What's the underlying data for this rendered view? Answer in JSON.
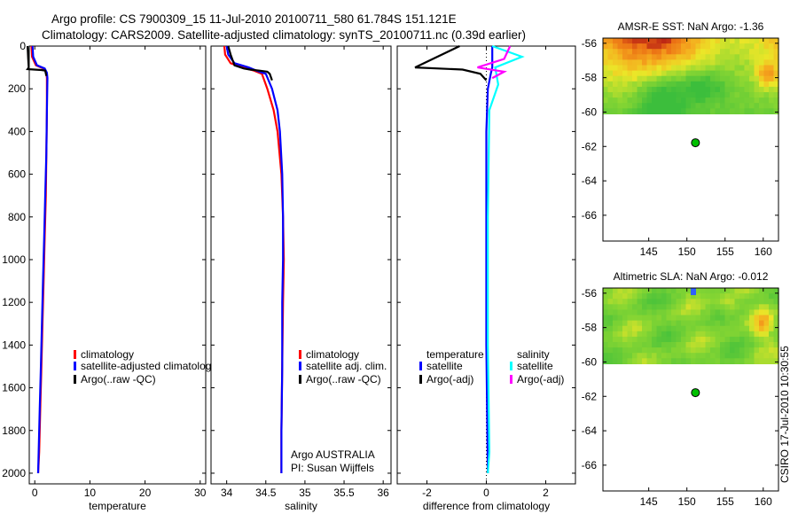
{
  "title": {
    "line1": "Argo profile: CS 7900309_15 11-Jul-2010 20100711_580 61.784S 151.121E",
    "line2": "Climatology: CARS2009. Satellite-adjusted climatology: synTS_20100711.nc (0.39d earlier)"
  },
  "side_stamp": "CSIRO 17-Jul-2010 10:30:55",
  "colors": {
    "climatology": "#ff0000",
    "satellite": "#0000ff",
    "argo": "#000000",
    "sal_satellite": "#00ffff",
    "sal_argo": "#ff00ff",
    "marker": "#00c000"
  },
  "chart_data": [
    {
      "type": "line",
      "name": "temperature_profile",
      "xlabel": "temperature",
      "ylabel": "",
      "xlim": [
        -1,
        31
      ],
      "ylim": [
        2050,
        0
      ],
      "xticks": [
        0,
        10,
        20,
        30
      ],
      "xtick_labels": [
        "0",
        "10",
        "20",
        "30"
      ],
      "yticks": [
        0,
        200,
        400,
        600,
        800,
        1000,
        1200,
        1400,
        1600,
        1800,
        2000
      ],
      "ytick_labels": [
        "0",
        "200",
        "400",
        "600",
        "800",
        "1000",
        "1200",
        "1400",
        "1600",
        "1800",
        "2000"
      ],
      "legend_entries": [
        "climatology",
        "satellite-adjusted climatology",
        "Argo(..raw -QC)"
      ],
      "series": [
        {
          "name": "climatology",
          "x": [
            -0.6,
            -0.5,
            0.2,
            1.6,
            2.1,
            2.2,
            2.2,
            2.1,
            2.0,
            1.8,
            1.6,
            1.4,
            1.2,
            1.0,
            0.8,
            0.6
          ],
          "y": [
            0,
            50,
            90,
            105,
            125,
            150,
            300,
            500,
            700,
            900,
            1100,
            1300,
            1500,
            1700,
            1900,
            2000
          ]
        },
        {
          "name": "satellite-adjusted climatology",
          "x": [
            -0.4,
            -0.3,
            0.4,
            1.8,
            2.2,
            2.3,
            2.2,
            2.1,
            1.9,
            1.7,
            1.5,
            1.3,
            1.1,
            0.9,
            0.7,
            0.6
          ],
          "y": [
            0,
            50,
            90,
            105,
            125,
            150,
            300,
            500,
            700,
            900,
            1100,
            1300,
            1500,
            1700,
            1900,
            2000
          ]
        },
        {
          "name": "Argo(..raw -QC)",
          "x": [
            -1.3,
            -1.2,
            -1.1,
            -1.3,
            -0.1,
            1.2,
            1.9,
            2.1
          ],
          "y": [
            0,
            60,
            100,
            108,
            110,
            112,
            115,
            140
          ]
        }
      ]
    },
    {
      "type": "line",
      "name": "salinity_profile",
      "xlabel": "salinity",
      "xlim": [
        33.8,
        36.1
      ],
      "ylim": [
        2050,
        0
      ],
      "xticks": [
        34,
        34.5,
        35,
        35.5,
        36
      ],
      "xtick_labels": [
        "34",
        "34.5",
        "35",
        "35.5",
        "36"
      ],
      "legend_entries": [
        "climatology",
        "satellite adj. clim.",
        "Argo(..raw -QC)"
      ],
      "annotations": [
        "Argo AUSTRALIA",
        "PI: Susan Wijffels"
      ],
      "series": [
        {
          "name": "climatology",
          "x": [
            33.97,
            33.98,
            34.05,
            34.2,
            34.35,
            34.45,
            34.52,
            34.6,
            34.65,
            34.7,
            34.72,
            34.73,
            34.72,
            34.71,
            34.7,
            34.7
          ],
          "y": [
            0,
            40,
            80,
            100,
            115,
            130,
            200,
            300,
            400,
            600,
            800,
            1000,
            1200,
            1500,
            1800,
            2000
          ]
        },
        {
          "name": "satellite adj. clim.",
          "x": [
            34.0,
            34.02,
            34.1,
            34.28,
            34.38,
            34.5,
            34.58,
            34.65,
            34.68,
            34.71,
            34.72,
            34.72,
            34.71,
            34.71,
            34.7,
            34.7
          ],
          "y": [
            0,
            40,
            80,
            100,
            115,
            130,
            200,
            300,
            400,
            600,
            800,
            1000,
            1200,
            1500,
            1800,
            2000
          ]
        },
        {
          "name": "Argo(..raw -QC)",
          "x": [
            34.02,
            34.05,
            34.1,
            34.22,
            34.3,
            34.42,
            34.52,
            34.55,
            34.58
          ],
          "y": [
            0,
            40,
            90,
            105,
            110,
            115,
            120,
            130,
            160
          ]
        }
      ]
    },
    {
      "type": "line",
      "name": "difference_profile",
      "xlabel": "difference from climatology",
      "xlim": [
        -3.0,
        3.0
      ],
      "ylim": [
        2050,
        0
      ],
      "xticks": [
        -2,
        0,
        2
      ],
      "xtick_labels": [
        "-2",
        "0",
        "2"
      ],
      "legend_headers": [
        "temperature",
        "salinity"
      ],
      "legend_entries": [
        "satellite",
        "Argo(-adj)",
        "satellite",
        "Argo(-adj)"
      ],
      "series": [
        {
          "name": "temperature satellite",
          "x": [
            0.2,
            0.2,
            0.2,
            0.15,
            0.05,
            0.0,
            0.0,
            0.0,
            0.05
          ],
          "y": [
            0,
            60,
            100,
            130,
            200,
            400,
            800,
            1400,
            2000
          ]
        },
        {
          "name": "temperature Argo(-adj)",
          "x": [
            -0.9,
            -2.4,
            -0.8,
            -0.2,
            0.0
          ],
          "y": [
            0,
            100,
            110,
            130,
            160
          ]
        },
        {
          "name": "salinity satellite",
          "x": [
            0.2,
            1.2,
            0.3,
            0.4,
            0.1,
            0.05,
            0.05,
            0.1,
            0.05
          ],
          "y": [
            0,
            50,
            100,
            180,
            300,
            800,
            1400,
            1900,
            2000
          ]
        },
        {
          "name": "salinity Argo(-adj)",
          "x": [
            0.8,
            0.6,
            -0.3,
            0.6,
            0.2
          ],
          "y": [
            0,
            60,
            100,
            120,
            150
          ]
        }
      ]
    },
    {
      "type": "heatmap",
      "name": "sst_map",
      "title": "AMSR-E SST: NaN Argo: -1.36",
      "xlim": [
        139,
        162
      ],
      "ylim": [
        -67.5,
        -55.7
      ],
      "xticks": [
        145,
        150,
        155,
        160
      ],
      "xtick_labels": [
        "145",
        "150",
        "155",
        "160"
      ],
      "yticks": [
        -56,
        -58,
        -60,
        -62,
        -64,
        -66
      ],
      "ytick_labels": [
        "-56",
        "-58",
        "-60",
        "-62",
        "-64",
        "-66"
      ],
      "data_extent_lat": [
        -60.1,
        -55.7
      ],
      "float_position": {
        "lon": 151.121,
        "lat": -61.784
      }
    },
    {
      "type": "heatmap",
      "name": "sla_map",
      "title": "Altimetric SLA: NaN Argo: -0.012",
      "xlim": [
        139,
        162
      ],
      "ylim": [
        -67.5,
        -55.7
      ],
      "xticks": [
        145,
        150,
        155,
        160
      ],
      "xtick_labels": [
        "145",
        "150",
        "155",
        "160"
      ],
      "yticks": [
        -56,
        -58,
        -60,
        -62,
        -64,
        -66
      ],
      "ytick_labels": [
        "-56",
        "-58",
        "-60",
        "-62",
        "-64",
        "-66"
      ],
      "data_extent_lat": [
        -60.1,
        -55.7
      ],
      "float_position": {
        "lon": 151.121,
        "lat": -61.784
      }
    }
  ]
}
